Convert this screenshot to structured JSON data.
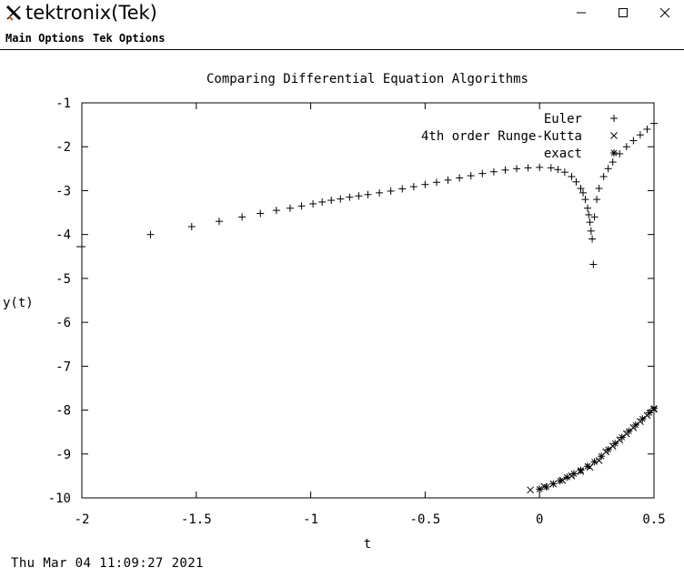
{
  "window": {
    "title": "tektronix(Tek)",
    "app_icon": "x-logo-icon",
    "controls": [
      "minimize-icon",
      "maximize-icon",
      "close-icon"
    ]
  },
  "menubar": {
    "items": [
      {
        "label": "Main Options"
      },
      {
        "label": "Tek Options"
      }
    ]
  },
  "timestamp": "Thu Mar 04 11:09:27 2021",
  "chart_data": {
    "type": "scatter",
    "title": "Comparing Differential Equation Algorithms",
    "xlabel": "t",
    "ylabel": "y(t)",
    "xlim": [
      -2,
      0.5
    ],
    "ylim": [
      -10,
      -1
    ],
    "xticks": [
      -2,
      -1.5,
      -1,
      -0.5,
      0,
      0.5
    ],
    "xtick_labels": [
      "-2",
      "-1.5",
      "-1",
      "-0.5",
      "0",
      "0.5"
    ],
    "yticks": [
      -1,
      -2,
      -3,
      -4,
      -5,
      -6,
      -7,
      -8,
      -9,
      -10
    ],
    "ytick_labels": [
      "-1",
      "-2",
      "-3",
      "-4",
      "-5",
      "-6",
      "-7",
      "-8",
      "-9",
      "-10"
    ],
    "grid": false,
    "legend_position": "top-right",
    "series": [
      {
        "name": "Euler",
        "marker": "plus",
        "x": [
          -1.7,
          -1.52,
          -1.4,
          -1.3,
          -1.22,
          -1.15,
          -1.09,
          -1.04,
          -0.99,
          -0.95,
          -0.91,
          -0.87,
          -0.83,
          -0.79,
          -0.75,
          -0.7,
          -0.65,
          -0.6,
          -0.55,
          -0.5,
          -0.45,
          -0.4,
          -0.35,
          -0.3,
          -0.25,
          -0.2,
          -0.15,
          -0.1,
          -0.05,
          0.0,
          0.05,
          0.08,
          0.11,
          0.14,
          0.16,
          0.18,
          0.19,
          0.2,
          0.21,
          0.215,
          0.22,
          0.225,
          0.23,
          0.235,
          0.24,
          0.25,
          0.26,
          0.28,
          0.3,
          0.32,
          0.35,
          0.38,
          0.41,
          0.44,
          0.47,
          0.5
        ],
        "y": [
          -4.0,
          -3.82,
          -3.7,
          -3.6,
          -3.52,
          -3.45,
          -3.4,
          -3.35,
          -3.3,
          -3.26,
          -3.22,
          -3.19,
          -3.15,
          -3.12,
          -3.09,
          -3.05,
          -3.01,
          -2.96,
          -2.91,
          -2.86,
          -2.81,
          -2.76,
          -2.71,
          -2.66,
          -2.61,
          -2.57,
          -2.53,
          -2.5,
          -2.48,
          -2.47,
          -2.48,
          -2.52,
          -2.58,
          -2.68,
          -2.8,
          -2.95,
          -3.05,
          -3.2,
          -3.4,
          -3.55,
          -3.72,
          -3.92,
          -4.1,
          -4.68,
          -3.6,
          -3.2,
          -2.95,
          -2.68,
          -2.5,
          -2.35,
          -2.16,
          -2.0,
          -1.86,
          -1.73,
          -1.6,
          -1.47
        ]
      },
      {
        "name": "4th order Runge-Kutta",
        "marker": "cross",
        "x": [
          -0.04,
          0.02,
          0.06,
          0.1,
          0.14,
          0.18,
          0.22,
          0.26,
          0.29,
          0.32,
          0.35,
          0.38,
          0.41,
          0.44,
          0.47,
          0.5
        ],
        "y": [
          -9.82,
          -9.74,
          -9.68,
          -9.6,
          -9.5,
          -9.4,
          -9.3,
          -9.15,
          -8.95,
          -8.82,
          -8.68,
          -8.54,
          -8.4,
          -8.26,
          -8.12,
          -7.98
        ]
      },
      {
        "name": "exact",
        "marker": "star",
        "x": [
          0.0,
          0.03,
          0.06,
          0.09,
          0.12,
          0.15,
          0.18,
          0.21,
          0.24,
          0.27,
          0.3,
          0.33,
          0.36,
          0.39,
          0.42,
          0.45,
          0.48,
          0.5
        ],
        "y": [
          -9.8,
          -9.75,
          -9.68,
          -9.61,
          -9.53,
          -9.45,
          -9.37,
          -9.28,
          -9.18,
          -9.05,
          -8.9,
          -8.76,
          -8.62,
          -8.48,
          -8.34,
          -8.2,
          -8.06,
          -7.96
        ]
      }
    ]
  }
}
